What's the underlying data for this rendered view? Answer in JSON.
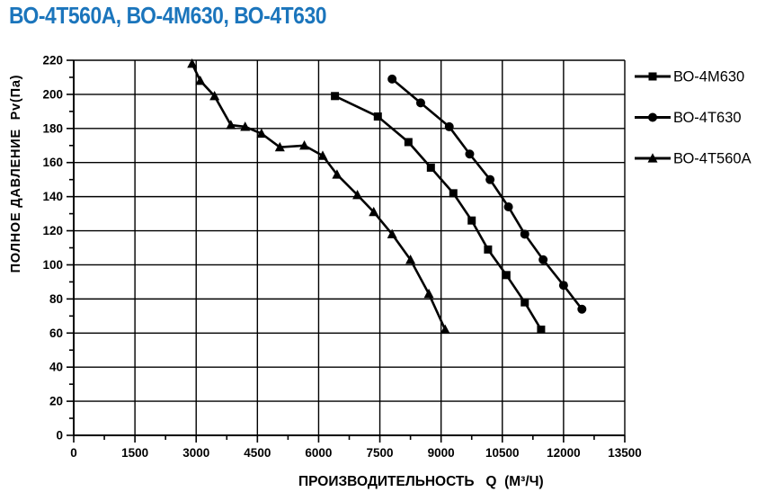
{
  "title": {
    "text": "ВО-4Т560А, ВО-4М630, ВО-4Т630",
    "color": "#1B75BC"
  },
  "chart_data": {
    "type": "line",
    "title": "ВО-4Т560А, ВО-4М630, ВО-4Т630",
    "xlabel": "ПРОИЗВОДИТЕЛЬНОСТЬ   Q  (М³/Ч)",
    "ylabel": "ПОЛНОЕ ДАВЛЕНИЕ  Pv(Па)",
    "xlim": [
      0,
      13500
    ],
    "ylim": [
      0,
      220
    ],
    "x_major_step": 1500,
    "x_minor_step": 750,
    "y_major_step": 20,
    "y_minor_step": 10,
    "grid": true,
    "grid_color": "#000000",
    "line_color": "#000000",
    "background": "#ffffff",
    "legend_position": "right-top",
    "series": [
      {
        "id": "vo-4m630",
        "name": "ВО-4М630",
        "marker": "square",
        "points": [
          [
            6400,
            199
          ],
          [
            7450,
            187
          ],
          [
            8200,
            172
          ],
          [
            8750,
            157
          ],
          [
            9300,
            142
          ],
          [
            9750,
            126
          ],
          [
            10150,
            109
          ],
          [
            10600,
            94
          ],
          [
            11050,
            78
          ],
          [
            11450,
            62
          ]
        ]
      },
      {
        "id": "vo-4t630",
        "name": "ВО-4Т630",
        "marker": "circle",
        "points": [
          [
            7800,
            209
          ],
          [
            8500,
            195
          ],
          [
            9200,
            181
          ],
          [
            9700,
            165
          ],
          [
            10200,
            150
          ],
          [
            10650,
            134
          ],
          [
            11050,
            118
          ],
          [
            11500,
            103
          ],
          [
            12000,
            88
          ],
          [
            12450,
            74
          ]
        ]
      },
      {
        "id": "vo-4t560a",
        "name": "ВО-4Т560А",
        "marker": "triangle",
        "points": [
          [
            2900,
            218
          ],
          [
            3100,
            208
          ],
          [
            3450,
            199
          ],
          [
            3850,
            182
          ],
          [
            4200,
            181
          ],
          [
            4600,
            177
          ],
          [
            5050,
            169
          ],
          [
            5650,
            170
          ],
          [
            6100,
            164
          ],
          [
            6450,
            153
          ],
          [
            6950,
            141
          ],
          [
            7350,
            131
          ],
          [
            7800,
            118
          ],
          [
            8250,
            103
          ],
          [
            8700,
            83
          ],
          [
            9100,
            62
          ]
        ]
      }
    ]
  }
}
